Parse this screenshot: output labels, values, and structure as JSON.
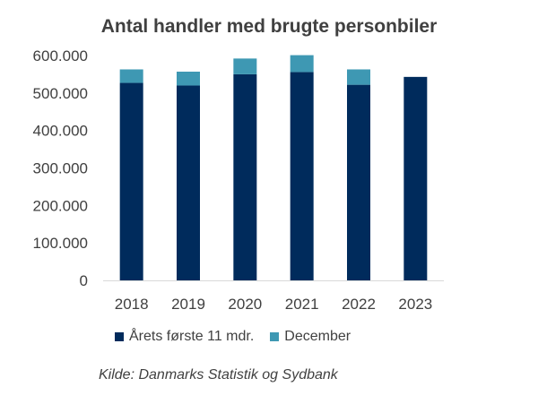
{
  "chart_data": {
    "type": "bar",
    "stacked": true,
    "title": "Antal handler med brugte personbiler",
    "categories": [
      "2018",
      "2019",
      "2020",
      "2021",
      "2022",
      "2023"
    ],
    "series": [
      {
        "name": "Årets første 11 mdr.",
        "color": "#002B5C",
        "values": [
          527000,
          520000,
          550000,
          556000,
          522000,
          543000
        ]
      },
      {
        "name": "December",
        "color": "#3E98B3",
        "values": [
          36000,
          37000,
          42000,
          45000,
          41000,
          0
        ]
      }
    ],
    "ylim": [
      0,
      600000
    ],
    "yticks": [
      0,
      100000,
      200000,
      300000,
      400000,
      500000,
      600000
    ],
    "ytick_labels": [
      "0",
      "100.000",
      "200.000",
      "300.000",
      "400.000",
      "500.000",
      "600.000"
    ],
    "legend_position": "bottom",
    "grid": false
  },
  "source": "Kilde: Danmarks Statistik og Sydbank"
}
